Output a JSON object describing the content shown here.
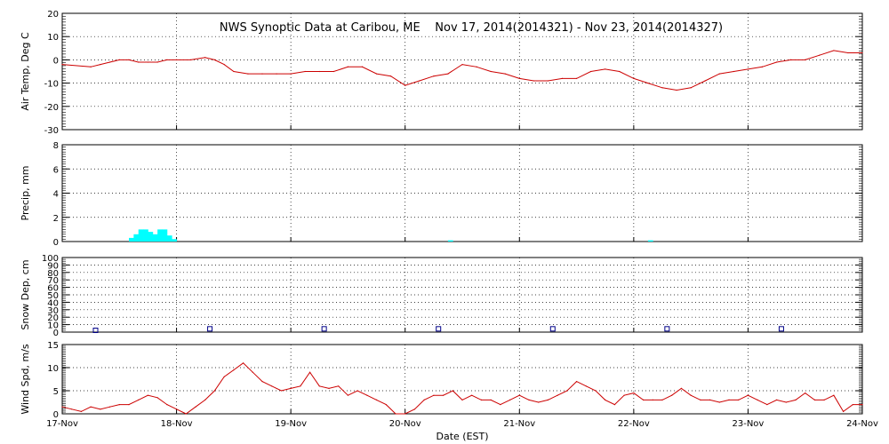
{
  "chart_data": {
    "title": "NWS Synoptic Data at Caribou, ME    Nov 17, 2014(2014321) - Nov 23, 2014(2014327)",
    "xlabel": "Date (EST)",
    "x_range": [
      "2014-11-17 00:00",
      "2014-11-24 00:00"
    ],
    "x_ticks": [
      "17-Nov",
      "18-Nov",
      "19-Nov",
      "20-Nov",
      "21-Nov",
      "22-Nov",
      "23-Nov",
      "24-Nov"
    ],
    "grid": true,
    "panels": [
      {
        "type": "line",
        "ylabel": "Air Temp, Deg C",
        "ylim": [
          -30,
          20
        ],
        "yticks": [
          -30,
          -20,
          -10,
          0,
          10,
          20
        ],
        "color": "#cc0000",
        "series": [
          {
            "x_hours": [
              0,
              6,
              8,
              10,
              12,
              14,
              16,
              18,
              20,
              22,
              24,
              27,
              30,
              32,
              34,
              36,
              39,
              42,
              45,
              48,
              51,
              54,
              57,
              60,
              63,
              66,
              69,
              72,
              75,
              78,
              81,
              84,
              87,
              90,
              93,
              96,
              99,
              102,
              105,
              108,
              111,
              114,
              117,
              120,
              123,
              126,
              129,
              132,
              135,
              138,
              141,
              144,
              147,
              150,
              153,
              156,
              159,
              162,
              165,
              168
            ],
            "values": [
              -2,
              -3,
              -2,
              -1,
              0,
              0,
              -1,
              -1,
              -1,
              0,
              0,
              0,
              1,
              0,
              -2,
              -5,
              -6,
              -6,
              -6,
              -6,
              -5,
              -5,
              -5,
              -3,
              -3,
              -6,
              -7,
              -11,
              -9,
              -7,
              -6,
              -2,
              -3,
              -5,
              -6,
              -8,
              -9,
              -9,
              -8,
              -8,
              -5,
              -4,
              -5,
              -8,
              -10,
              -12,
              -13,
              -12,
              -9,
              -6,
              -5,
              -4,
              -3,
              -1,
              0,
              0,
              2,
              4,
              3,
              3
            ]
          }
        ]
      },
      {
        "type": "bar",
        "ylabel": "Precip, mm",
        "ylim": [
          0,
          8
        ],
        "yticks": [
          0,
          2,
          4,
          6,
          8
        ],
        "color": "#00ffff",
        "series": [
          {
            "x_hours": [
              14,
              15,
              16,
              17,
              18,
              19,
              20,
              21,
              22,
              23,
              81,
              123
            ],
            "values": [
              0.3,
              0.6,
              1.0,
              1.0,
              0.8,
              0.6,
              1.0,
              1.0,
              0.5,
              0.2,
              0.1,
              0.1
            ]
          }
        ]
      },
      {
        "type": "scatter",
        "ylabel": "Snow Dep, cm",
        "ylim": [
          0,
          100
        ],
        "yticks": [
          0,
          10,
          20,
          30,
          40,
          50,
          60,
          70,
          80,
          90,
          100
        ],
        "color": "#000088",
        "series": [
          {
            "x_hours": [
              7,
              31,
              55,
              79,
              103,
              127,
              151
            ],
            "values": [
              0,
              2,
              2,
              2,
              2,
              2,
              2
            ]
          }
        ]
      },
      {
        "type": "line",
        "ylabel": "Wind Spd, m/s",
        "ylim": [
          0,
          15
        ],
        "yticks": [
          0,
          5,
          10,
          15
        ],
        "color": "#cc0000",
        "series": [
          {
            "x_hours": [
              0,
              2,
              4,
              6,
              8,
              10,
              12,
              14,
              16,
              18,
              20,
              22,
              24,
              26,
              28,
              30,
              32,
              34,
              36,
              38,
              40,
              42,
              44,
              46,
              48,
              50,
              52,
              54,
              56,
              58,
              60,
              62,
              64,
              66,
              68,
              70,
              72,
              74,
              76,
              78,
              80,
              82,
              84,
              86,
              88,
              90,
              92,
              94,
              96,
              98,
              100,
              102,
              104,
              106,
              108,
              110,
              112,
              114,
              116,
              118,
              120,
              122,
              124,
              126,
              128,
              130,
              132,
              134,
              136,
              138,
              140,
              142,
              144,
              146,
              148,
              150,
              152,
              154,
              156,
              158,
              160,
              162,
              164,
              166,
              168
            ],
            "values": [
              1.5,
              1,
              0.5,
              1.5,
              1,
              1.5,
              2,
              2,
              3,
              4,
              3.5,
              2,
              1,
              0,
              1.5,
              3,
              5,
              8,
              9.5,
              11,
              9,
              7,
              6,
              5,
              5.5,
              6,
              9,
              6,
              5.5,
              6,
              4,
              5,
              4,
              3,
              2,
              0,
              0,
              1,
              3,
              4,
              4,
              5,
              3,
              4,
              3,
              3,
              2,
              3,
              4,
              3,
              2.5,
              3,
              4,
              5,
              7,
              6,
              5,
              3,
              2,
              4,
              4.5,
              3,
              3,
              3,
              4,
              5.5,
              4,
              3,
              3,
              2.5,
              3,
              3,
              4,
              3,
              2,
              3,
              2.5,
              3,
              4.5,
              3,
              3,
              4,
              0.5,
              2,
              2
            ]
          }
        ]
      }
    ]
  }
}
